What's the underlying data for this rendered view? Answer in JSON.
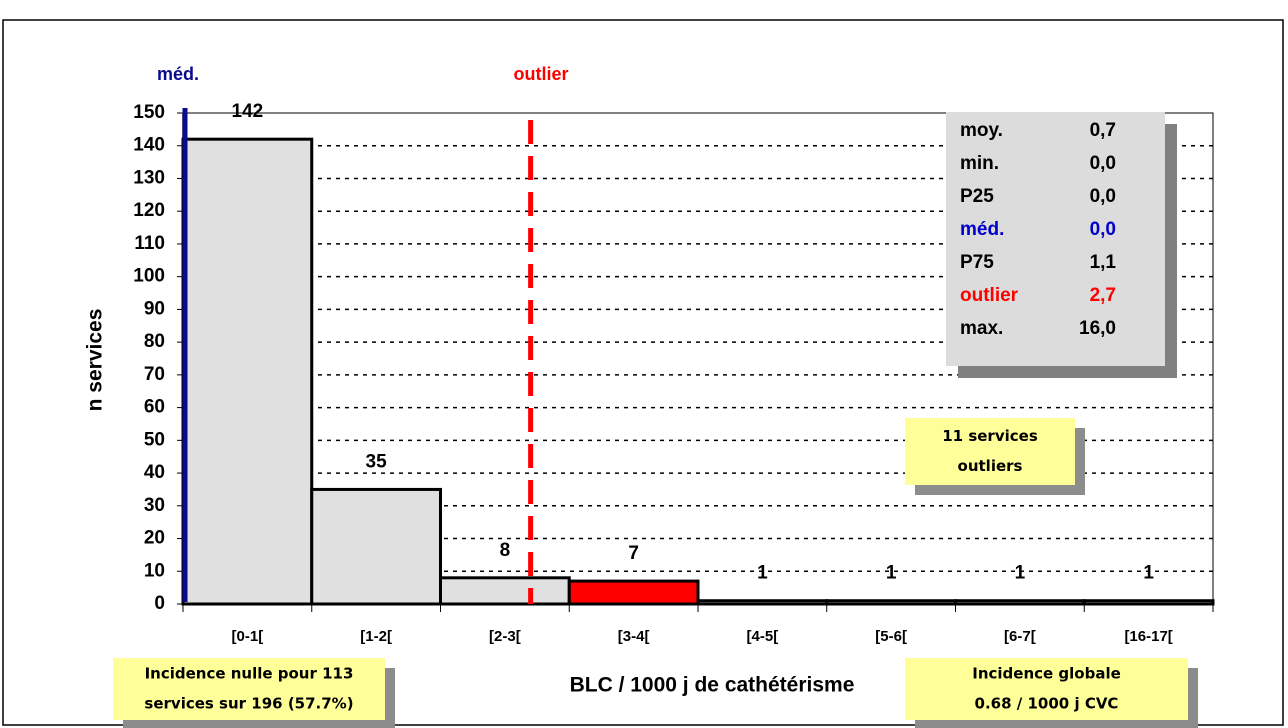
{
  "chart_data": {
    "type": "bar",
    "y_label": "n services",
    "x_label": "BLC / 1000 j de cathétérisme",
    "categories": [
      "[0-1[",
      "[1-2[",
      "[2-3[",
      "[3-4[",
      "[4-5[",
      "[5-6[",
      "[6-7[",
      "[16-17["
    ],
    "values": [
      142,
      35,
      8,
      7,
      1,
      1,
      1,
      1
    ],
    "colors": [
      "#e0e0e0",
      "#e0e0e0",
      "#e0e0e0",
      "#ff0000",
      "#e0e0e0",
      "#e0e0e0",
      "#e0e0e0",
      "#e0e0e0"
    ],
    "ylim": [
      0,
      150
    ],
    "yticks": [
      0,
      10,
      20,
      30,
      40,
      50,
      60,
      70,
      80,
      90,
      100,
      110,
      120,
      130,
      140,
      150
    ],
    "grid": true,
    "median": {
      "label": "méd.",
      "value": 0,
      "color": "#0a0a8c"
    },
    "outlier": {
      "label": "outlier",
      "value": 2.7,
      "color": "#ff0000"
    },
    "stats": [
      {
        "name": "moy.",
        "value": "0,7",
        "color": "#000000"
      },
      {
        "name": "min.",
        "value": "0,0",
        "color": "#000000"
      },
      {
        "name": "P25",
        "value": "0,0",
        "color": "#000000"
      },
      {
        "name": "méd.",
        "value": "0,0",
        "color": "#0000cc"
      },
      {
        "name": "P75",
        "value": "1,1",
        "color": "#000000"
      },
      {
        "name": "outlier",
        "value": "2,7",
        "color": "#ff0000"
      },
      {
        "name": "max.",
        "value": "16,0",
        "color": "#000000"
      }
    ],
    "notes": {
      "outliers": [
        "11 services",
        "outliers"
      ],
      "zero": [
        "Incidence nulle pour 113",
        "services sur 196 (57.7%)"
      ],
      "global": [
        "Incidence globale",
        "0.68 / 1000 j CVC"
      ]
    }
  }
}
